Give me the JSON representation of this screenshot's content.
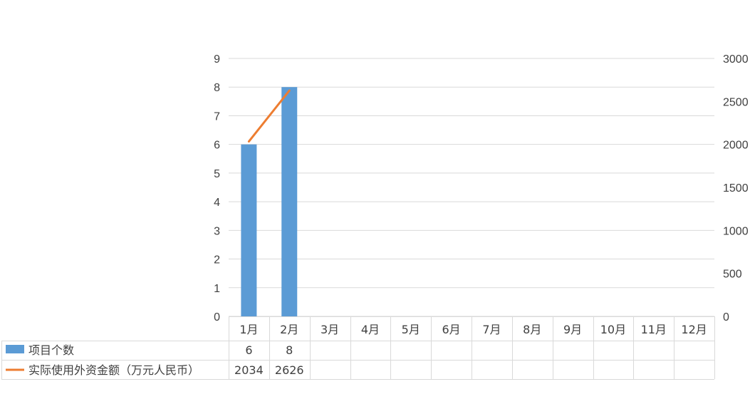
{
  "chart_data": {
    "type": "bar+line",
    "categories": [
      "1月",
      "2月",
      "3月",
      "4月",
      "5月",
      "6月",
      "7月",
      "8月",
      "9月",
      "10月",
      "11月",
      "12月"
    ],
    "series": [
      {
        "name": "项目个数",
        "type": "bar",
        "axis": "left",
        "color": "#5B9BD5",
        "values": [
          6,
          8,
          null,
          null,
          null,
          null,
          null,
          null,
          null,
          null,
          null,
          null
        ]
      },
      {
        "name": "实际使用外资金额（万元人民币）",
        "type": "line",
        "axis": "right",
        "color": "#ED7D31",
        "values": [
          2034,
          2626,
          null,
          null,
          null,
          null,
          null,
          null,
          null,
          null,
          null,
          null
        ]
      }
    ],
    "y_left": {
      "min": 0,
      "max": 9,
      "ticks": [
        0,
        1,
        2,
        3,
        4,
        5,
        6,
        7,
        8,
        9
      ]
    },
    "y_right": {
      "min": 0,
      "max": 3000,
      "ticks": [
        0,
        500,
        1000,
        1500,
        2000,
        2500,
        3000
      ]
    },
    "grid": true,
    "legend": "data-table-below"
  }
}
